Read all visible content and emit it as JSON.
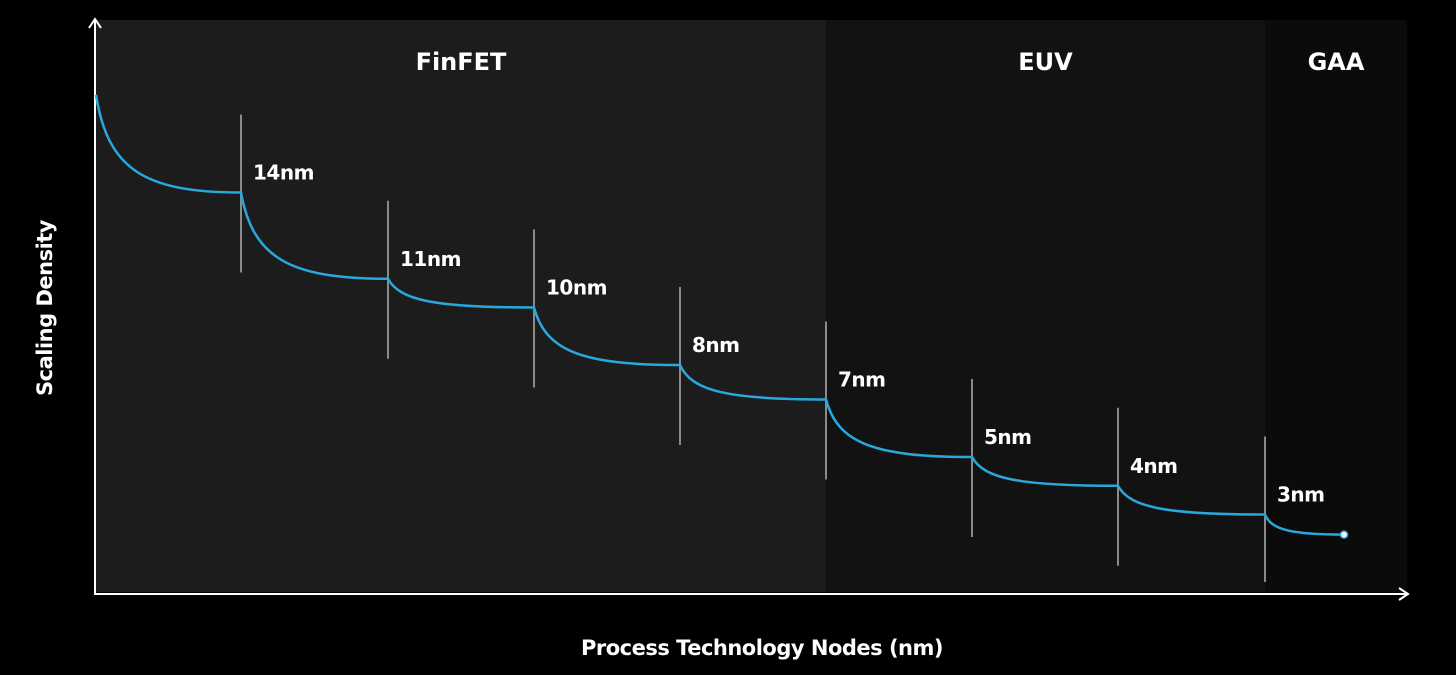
{
  "chart_data": {
    "type": "line",
    "title": "",
    "xlabel": "Process Technology Nodes (nm)",
    "ylabel": "Scaling Density",
    "regions": [
      {
        "name": "FinFET",
        "color": "#1c1c1c"
      },
      {
        "name": "EUV",
        "color": "#121212"
      },
      {
        "name": "GAA",
        "color": "#0b0b0b"
      }
    ],
    "nodes": [
      {
        "label": "14nm"
      },
      {
        "label": "11nm"
      },
      {
        "label": "10nm"
      },
      {
        "label": "8nm"
      },
      {
        "label": "7nm"
      },
      {
        "label": "5nm"
      },
      {
        "label": "4nm"
      },
      {
        "label": "3nm"
      }
    ],
    "series": [
      {
        "values": [
          0.87,
          0.7,
          0.55,
          0.5,
          0.4,
          0.34,
          0.24,
          0.19,
          0.14,
          0.105
        ]
      }
    ],
    "grid": false,
    "line_color": "#29a8dc",
    "axis_color": "#ffffff",
    "divider_color": "#8a8a8a"
  }
}
